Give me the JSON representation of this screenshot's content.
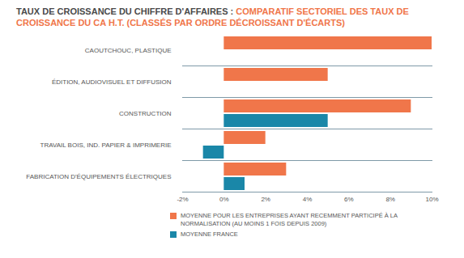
{
  "chart_data": {
    "type": "bar",
    "orientation": "horizontal",
    "title": "TAUX DE CROISSANCE DU CHIFFRE D'AFFAIRES :",
    "subtitle": "COMPARATIF SECTORIEL DES TAUX DE CROISSANCE DU CA H.T. (CLASSÉS PAR ORDRE DÉCROISSANT D'ÉCARTS)",
    "categories": [
      "CAOUTCHOUC, PLASTIQUE",
      "ÉDITION, AUDIOVISUEL ET DIFFUSION",
      "CONSTRUCTION",
      "TRAVAIL BOIS, IND. PAPIER & IMPRIMERIE",
      "FABRICATION D'ÉQUIPEMENTS ÉLECTRIQUES"
    ],
    "series": [
      {
        "name": "MOYENNE POUR LES ENTREPRISES AYANT RECEMMENT PARTICIPÉ À LA NORMALISATION (AU MOINS 1 FOIS DEPUIS 2009)",
        "color": "#f0764a",
        "values": [
          10,
          5,
          9,
          2,
          3
        ]
      },
      {
        "name": "MOYENNE FRANCE",
        "color": "#1a87a8",
        "values": [
          0,
          0,
          5,
          -1,
          1
        ]
      }
    ],
    "xlim": [
      -2,
      10
    ],
    "xticks": [
      {
        "value": -2,
        "label": "-2%"
      },
      {
        "value": 0,
        "label": "0%"
      },
      {
        "value": 2,
        "label": "2%"
      },
      {
        "value": 4,
        "label": "4%"
      },
      {
        "value": 6,
        "label": "6%"
      },
      {
        "value": 8,
        "label": "8%"
      },
      {
        "value": 10,
        "label": "10%"
      }
    ],
    "grid": false
  }
}
